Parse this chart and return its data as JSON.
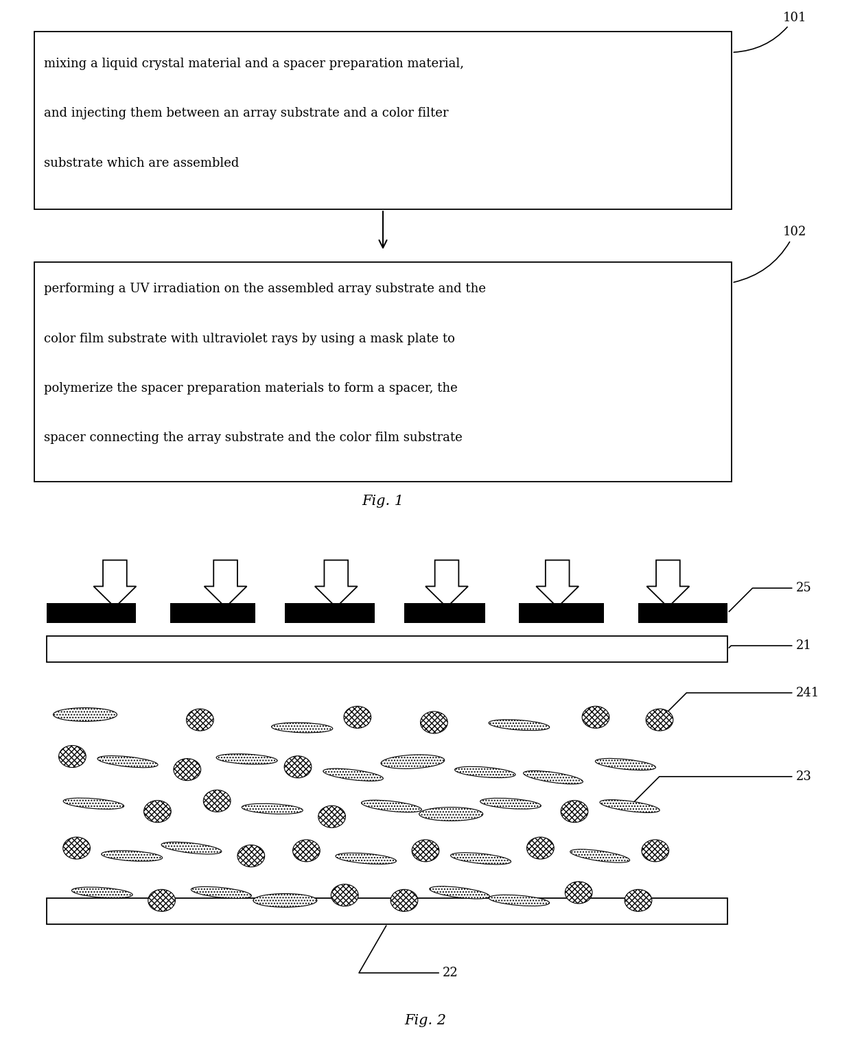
{
  "fig1": {
    "box1_text_lines": [
      "mixing a liquid crystal material and a spacer preparation material,",
      "and injecting them between an array substrate and a color filter",
      "substrate which are assembled"
    ],
    "box2_text_lines": [
      "performing a UV irradiation on the assembled array substrate and the",
      "color film substrate with ultraviolet rays by using a mask plate to",
      "polymerize the spacer preparation materials to form a spacer, the",
      "spacer connecting the array substrate and the color film substrate"
    ],
    "label1": "101",
    "label2": "102",
    "caption": "Fig. 1"
  },
  "fig2": {
    "caption": "Fig. 2",
    "label_25": "25",
    "label_21": "21",
    "label_241": "241",
    "label_23": "23",
    "label_22": "22"
  },
  "background_color": "#ffffff",
  "text_color": "#000000",
  "elements": [
    [
      1.0,
      6.35,
      "ellipse_h",
      0
    ],
    [
      2.35,
      6.25,
      "circle_dark",
      0
    ],
    [
      3.55,
      6.1,
      "ellipse_v",
      87
    ],
    [
      4.2,
      6.3,
      "circle_dark",
      0
    ],
    [
      5.1,
      6.2,
      "circle_dark",
      0
    ],
    [
      6.1,
      6.15,
      "ellipse_v",
      83
    ],
    [
      7.0,
      6.3,
      "circle_dark",
      0
    ],
    [
      7.75,
      6.25,
      "circle_dark",
      0
    ],
    [
      0.85,
      5.55,
      "circle_dark",
      0
    ],
    [
      1.5,
      5.45,
      "ellipse_v",
      80
    ],
    [
      2.2,
      5.3,
      "circle_dark",
      0
    ],
    [
      2.9,
      5.5,
      "ellipse_v",
      85
    ],
    [
      3.5,
      5.35,
      "circle_dark",
      0
    ],
    [
      4.15,
      5.2,
      "ellipse_v",
      78
    ],
    [
      4.85,
      5.45,
      "ellipse_h",
      5
    ],
    [
      5.7,
      5.25,
      "ellipse_v",
      82
    ],
    [
      6.5,
      5.15,
      "ellipse_v",
      76
    ],
    [
      7.35,
      5.4,
      "ellipse_v",
      80
    ],
    [
      1.1,
      4.65,
      "ellipse_v",
      82
    ],
    [
      1.85,
      4.5,
      "circle_dark",
      0
    ],
    [
      2.55,
      4.7,
      "circle_dark",
      0
    ],
    [
      3.2,
      4.55,
      "ellipse_v",
      85
    ],
    [
      3.9,
      4.4,
      "circle_dark",
      0
    ],
    [
      4.6,
      4.6,
      "ellipse_v",
      79
    ],
    [
      5.3,
      4.45,
      "ellipse_h",
      0
    ],
    [
      6.0,
      4.65,
      "ellipse_v",
      83
    ],
    [
      6.75,
      4.5,
      "circle_dark",
      0
    ],
    [
      7.4,
      4.6,
      "ellipse_v",
      77
    ],
    [
      0.9,
      3.8,
      "circle_dark",
      0
    ],
    [
      1.55,
      3.65,
      "ellipse_v",
      84
    ],
    [
      2.25,
      3.8,
      "ellipse_v",
      79
    ],
    [
      2.95,
      3.65,
      "circle_dark",
      0
    ],
    [
      3.6,
      3.75,
      "circle_dark",
      0
    ],
    [
      4.3,
      3.6,
      "ellipse_v",
      82
    ],
    [
      5.0,
      3.75,
      "circle_dark",
      0
    ],
    [
      5.65,
      3.6,
      "ellipse_v",
      80
    ],
    [
      6.35,
      3.8,
      "circle_dark",
      0
    ],
    [
      7.05,
      3.65,
      "ellipse_v",
      76
    ],
    [
      7.7,
      3.75,
      "circle_dark",
      0
    ],
    [
      1.2,
      2.95,
      "ellipse_v",
      83
    ],
    [
      1.9,
      2.8,
      "circle_dark",
      0
    ],
    [
      2.6,
      2.95,
      "ellipse_v",
      80
    ],
    [
      3.35,
      2.8,
      "ellipse_h",
      0
    ],
    [
      4.05,
      2.9,
      "circle_dark",
      0
    ],
    [
      4.75,
      2.8,
      "circle_dark",
      0
    ],
    [
      5.4,
      2.95,
      "ellipse_v",
      78
    ],
    [
      6.1,
      2.8,
      "ellipse_v",
      82
    ],
    [
      6.8,
      2.95,
      "circle_dark",
      0
    ],
    [
      7.5,
      2.8,
      "circle_dark",
      0
    ]
  ]
}
